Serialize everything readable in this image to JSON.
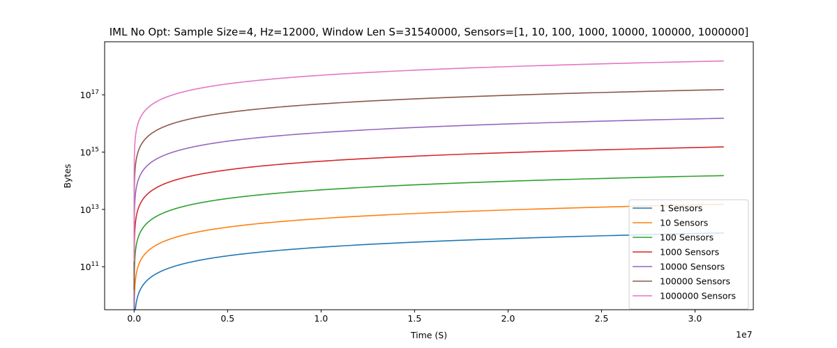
{
  "chart_data": {
    "type": "line",
    "title": "IML No Opt: Sample Size=4, Hz=12000, Window Len S=31540000, Sensors=[1, 10, 100, 1000, 10000, 100000, 1000000]",
    "xlabel": "Time (S)",
    "ylabel": "Bytes",
    "x_offset_label": "1e7",
    "y_scale": "log",
    "xlim": [
      -1577000,
      33117000
    ],
    "ylim_log10": [
      9.5,
      18.85
    ],
    "x_ticks": [
      {
        "value": 0,
        "label": "0.0"
      },
      {
        "value": 5000000,
        "label": "0.5"
      },
      {
        "value": 10000000,
        "label": "1.0"
      },
      {
        "value": 15000000,
        "label": "1.5"
      },
      {
        "value": 20000000,
        "label": "2.0"
      },
      {
        "value": 25000000,
        "label": "2.5"
      },
      {
        "value": 30000000,
        "label": "3.0"
      }
    ],
    "y_ticks": [
      {
        "exp": 11,
        "base": "10",
        "sup": "11"
      },
      {
        "exp": 13,
        "base": "10",
        "sup": "13"
      },
      {
        "exp": 15,
        "base": "10",
        "sup": "15"
      },
      {
        "exp": 17,
        "base": "10",
        "sup": "17"
      }
    ],
    "series_formula": "bytes = sensors * 4 * 12000 * t",
    "x_range": [
      0,
      31540000
    ],
    "grid": false,
    "legend_position": "lower-right",
    "series": [
      {
        "name": "1 Sensors",
        "sensors": 1,
        "color": "#1f77b4"
      },
      {
        "name": "10 Sensors",
        "sensors": 10,
        "color": "#ff7f0e"
      },
      {
        "name": "100 Sensors",
        "sensors": 100,
        "color": "#2ca02c"
      },
      {
        "name": "1000 Sensors",
        "sensors": 1000,
        "color": "#d62728"
      },
      {
        "name": "10000 Sensors",
        "sensors": 10000,
        "color": "#9467bd"
      },
      {
        "name": "100000 Sensors",
        "sensors": 100000,
        "color": "#8c564b"
      },
      {
        "name": "1000000 Sensors",
        "sensors": 1000000,
        "color": "#e377c2"
      }
    ]
  }
}
